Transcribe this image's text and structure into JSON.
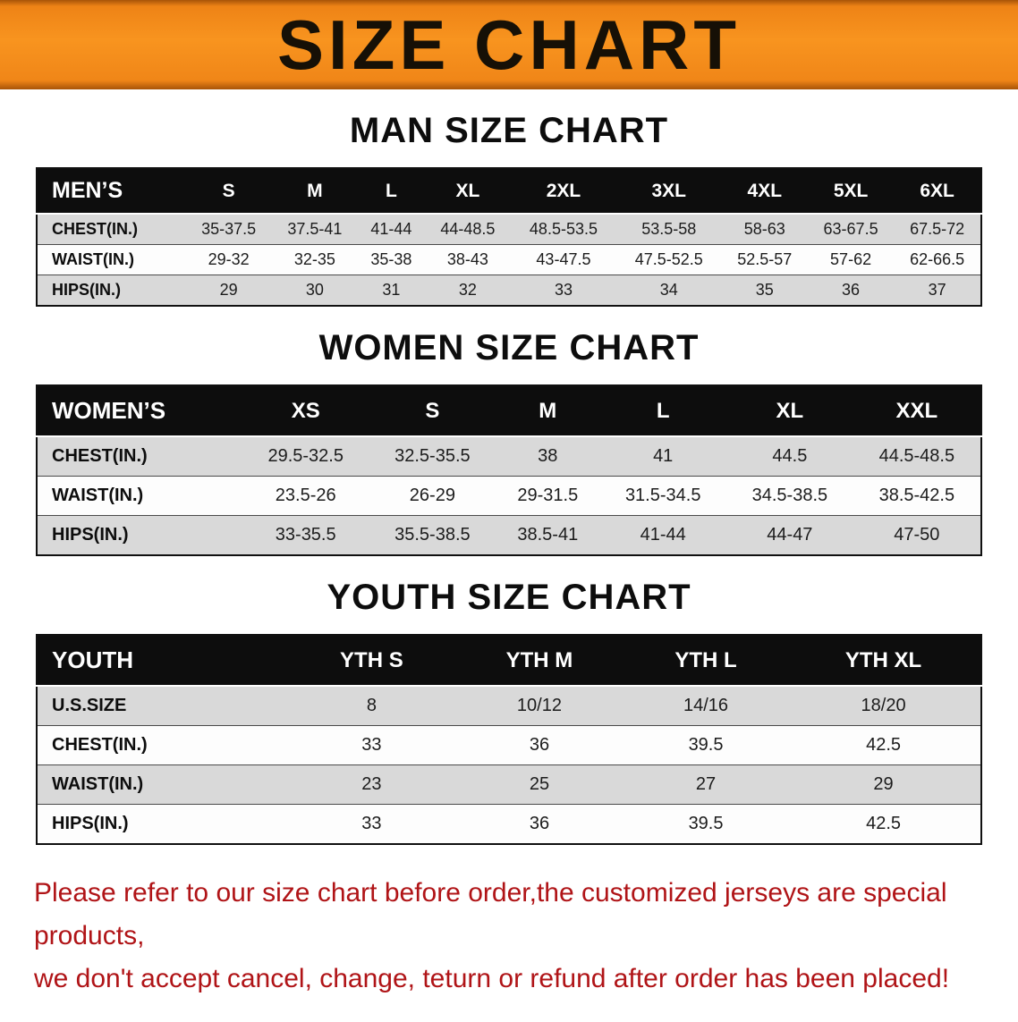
{
  "banner": {
    "title": "SIZE CHART"
  },
  "colors": {
    "banner_orange": "#f8941f",
    "table_header_black": "#0d0d0d",
    "row_gray": "#d9d9d9",
    "row_white": "#fdfdfd",
    "footnote_red": "#b01417"
  },
  "sections": {
    "men": {
      "heading": "MAN SIZE CHART",
      "table": {
        "header": [
          "MEN’S",
          "S",
          "M",
          "L",
          "XL",
          "2XL",
          "3XL",
          "4XL",
          "5XL",
          "6XL"
        ],
        "rows": [
          {
            "label": "CHEST(IN.)",
            "values": [
              "35-37.5",
              "37.5-41",
              "41-44",
              "44-48.5",
              "48.5-53.5",
              "53.5-58",
              "58-63",
              "63-67.5",
              "67.5-72"
            ]
          },
          {
            "label": "WAIST(IN.)",
            "values": [
              "29-32",
              "32-35",
              "35-38",
              "38-43",
              "43-47.5",
              "47.5-52.5",
              "52.5-57",
              "57-62",
              "62-66.5"
            ]
          },
          {
            "label": "HIPS(IN.)",
            "values": [
              "29",
              "30",
              "31",
              "32",
              "33",
              "34",
              "35",
              "36",
              "37"
            ]
          }
        ]
      }
    },
    "women": {
      "heading": "WOMEN SIZE CHART",
      "table": {
        "header": [
          "WOMEN’S",
          "XS",
          "S",
          "M",
          "L",
          "XL",
          "XXL"
        ],
        "rows": [
          {
            "label": "CHEST(IN.)",
            "values": [
              "29.5-32.5",
              "32.5-35.5",
              "38",
              "41",
              "44.5",
              "44.5-48.5"
            ]
          },
          {
            "label": "WAIST(IN.)",
            "values": [
              "23.5-26",
              "26-29",
              "29-31.5",
              "31.5-34.5",
              "34.5-38.5",
              "38.5-42.5"
            ]
          },
          {
            "label": "HIPS(IN.)",
            "values": [
              "33-35.5",
              "35.5-38.5",
              "38.5-41",
              "41-44",
              "44-47",
              "47-50"
            ]
          }
        ]
      }
    },
    "youth": {
      "heading": "YOUTH SIZE CHART",
      "table": {
        "header": [
          "YOUTH",
          "YTH S",
          "YTH M",
          "YTH L",
          "YTH XL"
        ],
        "rows": [
          {
            "label": "U.S.SIZE",
            "values": [
              "8",
              "10/12",
              "14/16",
              "18/20"
            ]
          },
          {
            "label": "CHEST(IN.)",
            "values": [
              "33",
              "36",
              "39.5",
              "42.5"
            ]
          },
          {
            "label": "WAIST(IN.)",
            "values": [
              "23",
              "25",
              "27",
              "29"
            ]
          },
          {
            "label": "HIPS(IN.)",
            "values": [
              "33",
              "36",
              "39.5",
              "42.5"
            ]
          }
        ]
      }
    }
  },
  "footnote": {
    "line1": "Please refer to our size chart before order,the customized jerseys are special products,",
    "line2": "we don't accept cancel, change, teturn or refund after order has been placed!"
  }
}
